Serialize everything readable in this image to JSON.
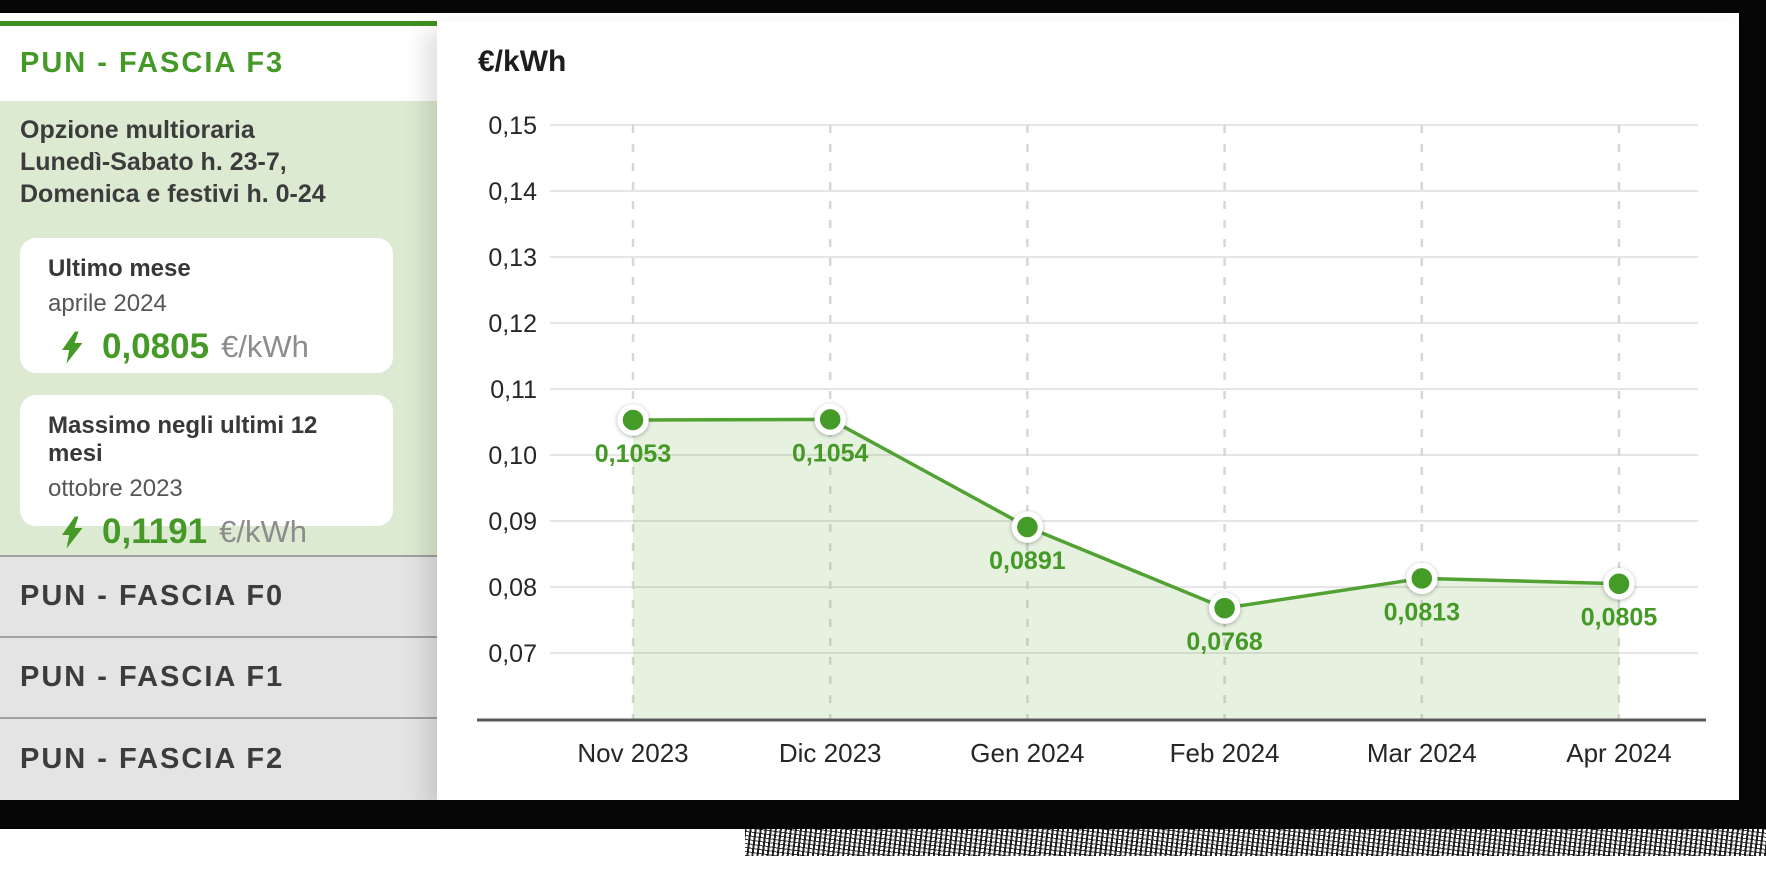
{
  "theme": {
    "accent": "#459a27",
    "accent_dark": "#3e8e22",
    "line_color": "#51a233",
    "point_color": "#459b28",
    "area_fill": "rgba(122,178,82,0.18)",
    "panel_green": "#dcead2",
    "tab_gray": "#e4e4e4"
  },
  "sidebar": {
    "active_tab": "PUN - FASCIA F3",
    "tabs": [
      "PUN - FASCIA F0",
      "PUN - FASCIA F1",
      "PUN - FASCIA F2"
    ],
    "panel": {
      "description_lines": [
        "Opzione multioraria",
        "Lunedì-Sabato h. 23-7,",
        "Domenica e festivi h. 0-24"
      ],
      "cards": [
        {
          "title": "Ultimo mese",
          "period": "aprile 2024",
          "value": "0,0805",
          "unit": "€/kWh",
          "icon": "lightning-bolt"
        },
        {
          "title": "Massimo negli ultimi 12 mesi",
          "period": "ottobre 2023",
          "value": "0,1191",
          "unit": "€/kWh",
          "icon": "lightning-bolt"
        }
      ]
    }
  },
  "chart": {
    "unit_label": "€/kWh"
  },
  "chart_data": {
    "type": "area",
    "title": "€/kWh",
    "x": [
      "Nov 2023",
      "Dic 2023",
      "Gen 2024",
      "Feb 2024",
      "Mar 2024",
      "Apr 2024"
    ],
    "values": [
      0.1053,
      0.1054,
      0.0891,
      0.0768,
      0.0813,
      0.0805
    ],
    "point_labels": [
      "0,1053",
      "0,1054",
      "0,0891",
      "0,0768",
      "0,0813",
      "0,0805"
    ],
    "y_ticks": [
      {
        "v": 0.15,
        "label": "0,15"
      },
      {
        "v": 0.14,
        "label": "0,14"
      },
      {
        "v": 0.13,
        "label": "0,13"
      },
      {
        "v": 0.12,
        "label": "0,12"
      },
      {
        "v": 0.11,
        "label": "0,11"
      },
      {
        "v": 0.1,
        "label": "0,10"
      },
      {
        "v": 0.09,
        "label": "0,09"
      },
      {
        "v": 0.08,
        "label": "0,08"
      },
      {
        "v": 0.07,
        "label": "0,07"
      }
    ],
    "ylim": [
      0.07,
      0.15
    ],
    "grid": {
      "horizontal": "solid",
      "vertical": "dashed"
    },
    "legend": "none"
  }
}
